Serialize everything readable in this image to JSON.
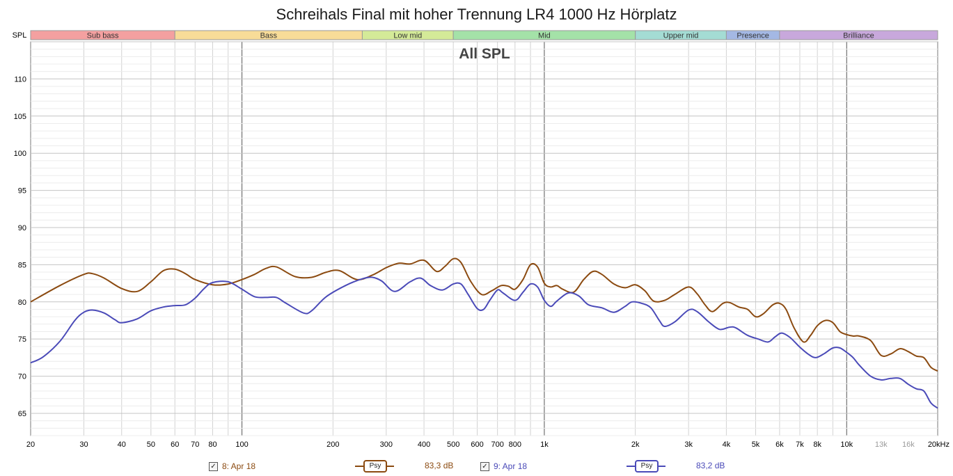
{
  "title": "Schreihals Final mit hoher Trennung LR4 1000 Hz Hörplatz",
  "chart_data": {
    "type": "line",
    "title": "Schreihals Final mit hoher Trennung LR4 1000 Hz Hörplatz",
    "inner_title": "All SPL",
    "ylabel": "SPL",
    "xlabel": "",
    "x_scale": "log",
    "xlim": [
      20,
      20000
    ],
    "ylim": [
      62,
      115
    ],
    "grid": true,
    "y_ticks": [
      65,
      70,
      75,
      80,
      85,
      90,
      95,
      100,
      105,
      110
    ],
    "x_tick_labels": [
      {
        "f": 20,
        "label": "20",
        "minor": false
      },
      {
        "f": 30,
        "label": "30",
        "minor": false
      },
      {
        "f": 40,
        "label": "40",
        "minor": false
      },
      {
        "f": 50,
        "label": "50",
        "minor": false
      },
      {
        "f": 60,
        "label": "60",
        "minor": false
      },
      {
        "f": 70,
        "label": "70",
        "minor": false
      },
      {
        "f": 80,
        "label": "80",
        "minor": false
      },
      {
        "f": 100,
        "label": "100",
        "minor": false
      },
      {
        "f": 200,
        "label": "200",
        "minor": false
      },
      {
        "f": 300,
        "label": "300",
        "minor": false
      },
      {
        "f": 400,
        "label": "400",
        "minor": false
      },
      {
        "f": 500,
        "label": "500",
        "minor": false
      },
      {
        "f": 600,
        "label": "600",
        "minor": false
      },
      {
        "f": 700,
        "label": "700",
        "minor": false
      },
      {
        "f": 800,
        "label": "800",
        "minor": false
      },
      {
        "f": 1000,
        "label": "1k",
        "minor": false
      },
      {
        "f": 2000,
        "label": "2k",
        "minor": false
      },
      {
        "f": 3000,
        "label": "3k",
        "minor": false
      },
      {
        "f": 4000,
        "label": "4k",
        "minor": false
      },
      {
        "f": 5000,
        "label": "5k",
        "minor": false
      },
      {
        "f": 6000,
        "label": "6k",
        "minor": false
      },
      {
        "f": 7000,
        "label": "7k",
        "minor": false
      },
      {
        "f": 8000,
        "label": "8k",
        "minor": false
      },
      {
        "f": 10000,
        "label": "10k",
        "minor": false
      },
      {
        "f": 13000,
        "label": "13k",
        "minor": true
      },
      {
        "f": 16000,
        "label": "16k",
        "minor": true
      },
      {
        "f": 20000,
        "label": "20kHz",
        "minor": false
      }
    ],
    "bands": [
      {
        "name": "Sub bass",
        "from": 20,
        "to": 60,
        "color": "#f4a0a0"
      },
      {
        "name": "Bass",
        "from": 60,
        "to": 250,
        "color": "#f8dc98"
      },
      {
        "name": "Low mid",
        "from": 250,
        "to": 500,
        "color": "#d4ea98"
      },
      {
        "name": "Mid",
        "from": 500,
        "to": 2000,
        "color": "#a4e2a8"
      },
      {
        "name": "Upper mid",
        "from": 2000,
        "to": 4000,
        "color": "#a4dcd4"
      },
      {
        "name": "Presence",
        "from": 4000,
        "to": 6000,
        "color": "#a4b8e4"
      },
      {
        "name": "Brilliance",
        "from": 6000,
        "to": 20000,
        "color": "#c8a8dc"
      }
    ],
    "series": [
      {
        "name": "8: Apr 18",
        "color": "#8b4a10",
        "value_label": "83,3 dB",
        "points": [
          [
            20,
            80
          ],
          [
            25,
            82.2
          ],
          [
            30,
            83.7
          ],
          [
            32,
            83.8
          ],
          [
            35,
            83.2
          ],
          [
            40,
            81.8
          ],
          [
            45,
            81.4
          ],
          [
            50,
            82.7
          ],
          [
            55,
            84.2
          ],
          [
            60,
            84.4
          ],
          [
            65,
            83.8
          ],
          [
            70,
            83
          ],
          [
            80,
            82.3
          ],
          [
            90,
            82.4
          ],
          [
            100,
            83
          ],
          [
            110,
            83.7
          ],
          [
            120,
            84.5
          ],
          [
            130,
            84.7
          ],
          [
            150,
            83.4
          ],
          [
            170,
            83.3
          ],
          [
            190,
            84
          ],
          [
            210,
            84.2
          ],
          [
            240,
            83
          ],
          [
            270,
            83.6
          ],
          [
            300,
            84.6
          ],
          [
            330,
            85.2
          ],
          [
            360,
            85.1
          ],
          [
            400,
            85.6
          ],
          [
            440,
            84.1
          ],
          [
            470,
            84.8
          ],
          [
            500,
            85.8
          ],
          [
            530,
            85.3
          ],
          [
            570,
            82.8
          ],
          [
            620,
            81
          ],
          [
            670,
            81.5
          ],
          [
            720,
            82.2
          ],
          [
            760,
            82.1
          ],
          [
            800,
            81.7
          ],
          [
            850,
            83
          ],
          [
            900,
            85
          ],
          [
            950,
            84.7
          ],
          [
            1000,
            82.5
          ],
          [
            1050,
            82
          ],
          [
            1100,
            82.2
          ],
          [
            1150,
            81.7
          ],
          [
            1250,
            81.3
          ],
          [
            1350,
            83
          ],
          [
            1450,
            84.1
          ],
          [
            1550,
            83.7
          ],
          [
            1700,
            82.4
          ],
          [
            1850,
            81.9
          ],
          [
            2000,
            82.3
          ],
          [
            2150,
            81.5
          ],
          [
            2300,
            80.1
          ],
          [
            2500,
            80.2
          ],
          [
            2700,
            81
          ],
          [
            3000,
            82
          ],
          [
            3200,
            81.1
          ],
          [
            3400,
            79.6
          ],
          [
            3600,
            78.7
          ],
          [
            3900,
            79.8
          ],
          [
            4100,
            79.9
          ],
          [
            4400,
            79.3
          ],
          [
            4700,
            79
          ],
          [
            5000,
            78
          ],
          [
            5300,
            78.4
          ],
          [
            5700,
            79.6
          ],
          [
            6000,
            79.8
          ],
          [
            6300,
            79
          ],
          [
            6700,
            76.5
          ],
          [
            7200,
            74.6
          ],
          [
            7600,
            75.5
          ],
          [
            8000,
            76.8
          ],
          [
            8500,
            77.5
          ],
          [
            9000,
            77.2
          ],
          [
            9500,
            76
          ],
          [
            10000,
            75.6
          ],
          [
            10500,
            75.4
          ],
          [
            11000,
            75.4
          ],
          [
            12000,
            74.8
          ],
          [
            13000,
            72.8
          ],
          [
            14000,
            73
          ],
          [
            15000,
            73.7
          ],
          [
            16000,
            73.3
          ],
          [
            17000,
            72.7
          ],
          [
            18000,
            72.5
          ],
          [
            19000,
            71.2
          ],
          [
            20000,
            70.7
          ]
        ]
      },
      {
        "name": "9: Apr 18",
        "color": "#4a4ab8",
        "value_label": "83,2 dB",
        "points": [
          [
            20,
            71.8
          ],
          [
            22,
            72.6
          ],
          [
            25,
            74.7
          ],
          [
            28,
            77.5
          ],
          [
            30,
            78.6
          ],
          [
            32,
            78.9
          ],
          [
            35,
            78.5
          ],
          [
            38,
            77.6
          ],
          [
            40,
            77.2
          ],
          [
            45,
            77.7
          ],
          [
            50,
            78.8
          ],
          [
            55,
            79.3
          ],
          [
            60,
            79.5
          ],
          [
            65,
            79.6
          ],
          [
            70,
            80.5
          ],
          [
            75,
            81.8
          ],
          [
            80,
            82.6
          ],
          [
            90,
            82.7
          ],
          [
            100,
            81.7
          ],
          [
            110,
            80.7
          ],
          [
            120,
            80.6
          ],
          [
            130,
            80.6
          ],
          [
            140,
            79.8
          ],
          [
            160,
            78.5
          ],
          [
            170,
            78.8
          ],
          [
            190,
            80.7
          ],
          [
            220,
            82.2
          ],
          [
            250,
            83.1
          ],
          [
            270,
            83.3
          ],
          [
            290,
            82.8
          ],
          [
            320,
            81.4
          ],
          [
            360,
            82.7
          ],
          [
            390,
            83.2
          ],
          [
            420,
            82.2
          ],
          [
            460,
            81.6
          ],
          [
            500,
            82.4
          ],
          [
            530,
            82.4
          ],
          [
            560,
            81
          ],
          [
            600,
            79.1
          ],
          [
            630,
            79
          ],
          [
            660,
            80.2
          ],
          [
            700,
            81.6
          ],
          [
            730,
            81.2
          ],
          [
            800,
            80.2
          ],
          [
            850,
            81.3
          ],
          [
            900,
            82.4
          ],
          [
            950,
            82
          ],
          [
            1000,
            80.2
          ],
          [
            1050,
            79.4
          ],
          [
            1100,
            80.1
          ],
          [
            1200,
            81.2
          ],
          [
            1300,
            80.8
          ],
          [
            1400,
            79.6
          ],
          [
            1550,
            79.2
          ],
          [
            1700,
            78.6
          ],
          [
            1850,
            79.4
          ],
          [
            1950,
            80
          ],
          [
            2100,
            79.8
          ],
          [
            2250,
            79.2
          ],
          [
            2400,
            77.5
          ],
          [
            2500,
            76.7
          ],
          [
            2700,
            77.3
          ],
          [
            3000,
            78.9
          ],
          [
            3200,
            78.7
          ],
          [
            3500,
            77.3
          ],
          [
            3800,
            76.3
          ],
          [
            4100,
            76.6
          ],
          [
            4300,
            76.5
          ],
          [
            4700,
            75.5
          ],
          [
            5100,
            75
          ],
          [
            5500,
            74.6
          ],
          [
            5800,
            75.3
          ],
          [
            6100,
            75.8
          ],
          [
            6500,
            75.2
          ],
          [
            7000,
            73.9
          ],
          [
            7500,
            72.9
          ],
          [
            7900,
            72.5
          ],
          [
            8400,
            73
          ],
          [
            9000,
            73.8
          ],
          [
            9500,
            73.8
          ],
          [
            10000,
            73.2
          ],
          [
            10500,
            72.5
          ],
          [
            11000,
            71.5
          ],
          [
            12000,
            70
          ],
          [
            13000,
            69.5
          ],
          [
            14000,
            69.7
          ],
          [
            15000,
            69.7
          ],
          [
            16000,
            68.9
          ],
          [
            17000,
            68.3
          ],
          [
            18000,
            68
          ],
          [
            19000,
            66.4
          ],
          [
            20000,
            65.7
          ]
        ]
      }
    ]
  },
  "legend": [
    {
      "checkbox": "✓",
      "label": "8: Apr 18",
      "psy": "Psy",
      "db": "83,3 dB"
    },
    {
      "checkbox": "✓",
      "label": "9: Apr 18",
      "psy": "Psy",
      "db": "83,2 dB"
    }
  ]
}
